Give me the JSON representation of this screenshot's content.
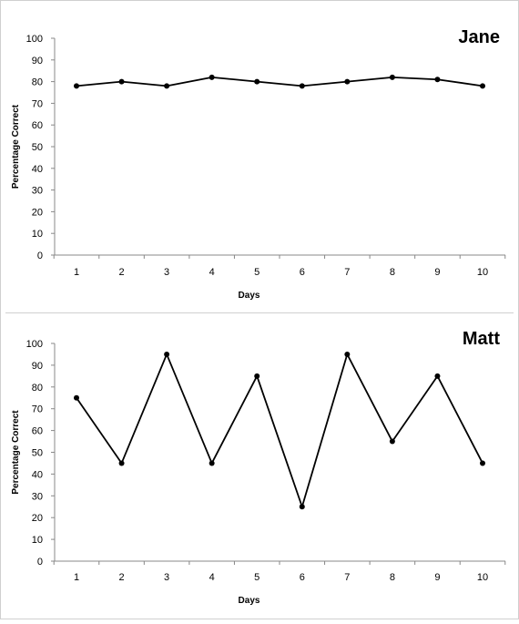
{
  "chart_data": [
    {
      "type": "line",
      "title": "Jane",
      "xlabel": "Days",
      "ylabel": "Percentage Correct",
      "x": [
        1,
        2,
        3,
        4,
        5,
        6,
        7,
        8,
        9,
        10
      ],
      "x_ticks": [
        "1",
        "2",
        "3",
        "4",
        "5",
        "6",
        "7",
        "8",
        "9",
        "10"
      ],
      "y_ticks": [
        "0",
        "10",
        "20",
        "30",
        "40",
        "50",
        "60",
        "70",
        "80",
        "90",
        "100"
      ],
      "ylim": [
        0,
        100
      ],
      "series": [
        {
          "values": [
            78,
            80,
            78,
            82,
            80,
            78,
            80,
            82,
            81,
            78
          ]
        }
      ],
      "grid": false,
      "line_color": "#000000"
    },
    {
      "type": "line",
      "title": "Matt",
      "xlabel": "Days",
      "ylabel": "Percentage Correct",
      "x": [
        1,
        2,
        3,
        4,
        5,
        6,
        7,
        8,
        9,
        10
      ],
      "x_ticks": [
        "1",
        "2",
        "3",
        "4",
        "5",
        "6",
        "7",
        "8",
        "9",
        "10"
      ],
      "y_ticks": [
        "0",
        "10",
        "20",
        "30",
        "40",
        "50",
        "60",
        "70",
        "80",
        "90",
        "100"
      ],
      "ylim": [
        0,
        100
      ],
      "series": [
        {
          "values": [
            75,
            45,
            95,
            45,
            85,
            25,
            95,
            55,
            85,
            45
          ]
        }
      ],
      "grid": false,
      "line_color": "#000000"
    }
  ]
}
